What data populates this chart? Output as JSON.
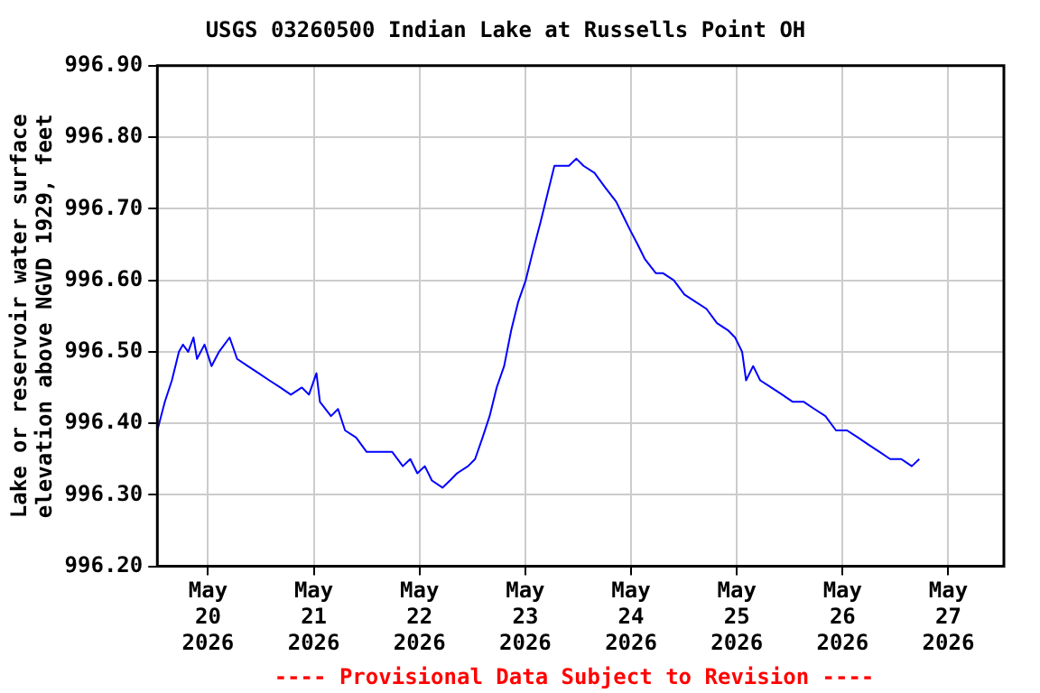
{
  "chart_data": {
    "type": "line",
    "title": "USGS 03260500 Indian Lake at Russells Point OH",
    "ylabel": "Lake or reservoir water surface elevation above NGVD 1929, feet",
    "annotations": [
      "---- Provisional Data Subject to Revision ----"
    ],
    "x": [
      "2026-05-19T12:30",
      "2026-05-19T14:12",
      "2026-05-19T15:48",
      "2026-05-19T17:24",
      "2026-05-19T18:18",
      "2026-05-19T19:30",
      "2026-05-19T20:42",
      "2026-05-19T21:30",
      "2026-05-19T23:12",
      "2026-05-20T00:48",
      "2026-05-20T02:30",
      "2026-05-20T04:54",
      "2026-05-20T06:36",
      "2026-05-20T09:00",
      "2026-05-20T11:30",
      "2026-05-20T13:54",
      "2026-05-20T16:24",
      "2026-05-20T18:48",
      "2026-05-20T21:18",
      "2026-05-20T22:54",
      "2026-05-21T00:36",
      "2026-05-21T01:24",
      "2026-05-21T03:54",
      "2026-05-21T05:30",
      "2026-05-21T07:06",
      "2026-05-21T09:36",
      "2026-05-21T12:00",
      "2026-05-21T15:18",
      "2026-05-21T17:48",
      "2026-05-21T20:12",
      "2026-05-21T21:54",
      "2026-05-21T23:30",
      "2026-05-22T01:12",
      "2026-05-22T02:48",
      "2026-05-22T05:12",
      "2026-05-22T06:54",
      "2026-05-22T08:30",
      "2026-05-22T11:00",
      "2026-05-22T12:36",
      "2026-05-22T14:18",
      "2026-05-22T15:54",
      "2026-05-22T17:30",
      "2026-05-22T19:12",
      "2026-05-22T20:48",
      "2026-05-22T22:24",
      "2026-05-23T00:06",
      "2026-05-23T01:42",
      "2026-05-23T03:24",
      "2026-05-23T05:00",
      "2026-05-23T06:36",
      "2026-05-23T08:18",
      "2026-05-23T09:54",
      "2026-05-23T11:36",
      "2026-05-23T13:12",
      "2026-05-23T15:42",
      "2026-05-23T18:06",
      "2026-05-23T20:36",
      "2026-05-23T22:12",
      "2026-05-23T23:48",
      "2026-05-24T01:30",
      "2026-05-24T03:06",
      "2026-05-24T05:36",
      "2026-05-24T07:12",
      "2026-05-24T09:42",
      "2026-05-24T12:06",
      "2026-05-24T14:36",
      "2026-05-24T17:06",
      "2026-05-24T19:30",
      "2026-05-24T22:00",
      "2026-05-24T23:36",
      "2026-05-25T01:12",
      "2026-05-25T02:06",
      "2026-05-25T03:42",
      "2026-05-25T05:18",
      "2026-05-25T07:48",
      "2026-05-25T10:18",
      "2026-05-25T12:42",
      "2026-05-25T15:12",
      "2026-05-25T17:36",
      "2026-05-25T20:06",
      "2026-05-25T22:30",
      "2026-05-26T01:00",
      "2026-05-26T03:30",
      "2026-05-26T05:54",
      "2026-05-26T08:24",
      "2026-05-26T10:48",
      "2026-05-26T13:18",
      "2026-05-26T15:42",
      "2026-05-26T17:24"
    ],
    "series": [
      {
        "color": "#0000ff",
        "values": [
          996.39,
          996.43,
          996.46,
          996.5,
          996.51,
          996.5,
          996.52,
          996.49,
          996.51,
          996.48,
          996.5,
          996.52,
          996.49,
          996.48,
          996.47,
          996.46,
          996.45,
          996.44,
          996.45,
          996.44,
          996.47,
          996.43,
          996.41,
          996.42,
          996.39,
          996.38,
          996.36,
          996.36,
          996.36,
          996.34,
          996.35,
          996.33,
          996.34,
          996.32,
          996.31,
          996.32,
          996.33,
          996.34,
          996.35,
          996.38,
          996.41,
          996.45,
          996.48,
          996.53,
          996.57,
          996.6,
          996.64,
          996.68,
          996.72,
          996.76,
          996.76,
          996.76,
          996.77,
          996.76,
          996.75,
          996.73,
          996.71,
          996.69,
          996.67,
          996.65,
          996.63,
          996.61,
          996.61,
          996.6,
          996.58,
          996.57,
          996.56,
          996.54,
          996.53,
          996.52,
          996.5,
          996.46,
          996.48,
          996.46,
          996.45,
          996.44,
          996.43,
          996.43,
          996.42,
          996.41,
          996.39,
          996.39,
          996.38,
          996.37,
          996.36,
          996.35,
          996.35,
          996.34,
          996.35
        ]
      }
    ],
    "xlim": [
      "2026-05-19T12:30",
      "2026-05-27T12:36"
    ],
    "xticks": [
      {
        "value": "2026-05-20",
        "label": "May 20 2026"
      },
      {
        "value": "2026-05-21",
        "label": "May 21 2026"
      },
      {
        "value": "2026-05-22",
        "label": "May 22 2026"
      },
      {
        "value": "2026-05-23",
        "label": "May 23 2026"
      },
      {
        "value": "2026-05-24",
        "label": "May 24 2026"
      },
      {
        "value": "2026-05-25",
        "label": "May 25 2026"
      },
      {
        "value": "2026-05-26",
        "label": "May 26 2026"
      },
      {
        "value": "2026-05-27",
        "label": "May 27 2026"
      }
    ],
    "ylim": [
      996.2,
      996.9
    ],
    "yticks": [
      {
        "value": 996.2,
        "label": "996.20"
      },
      {
        "value": 996.3,
        "label": "996.30"
      },
      {
        "value": 996.4,
        "label": "996.40"
      },
      {
        "value": 996.5,
        "label": "996.50"
      },
      {
        "value": 996.6,
        "label": "996.60"
      },
      {
        "value": 996.7,
        "label": "996.70"
      },
      {
        "value": 996.8,
        "label": "996.80"
      },
      {
        "value": 996.9,
        "label": "996.90"
      }
    ],
    "grid": true,
    "legend": false,
    "marker": "none",
    "line_style": "solid"
  }
}
